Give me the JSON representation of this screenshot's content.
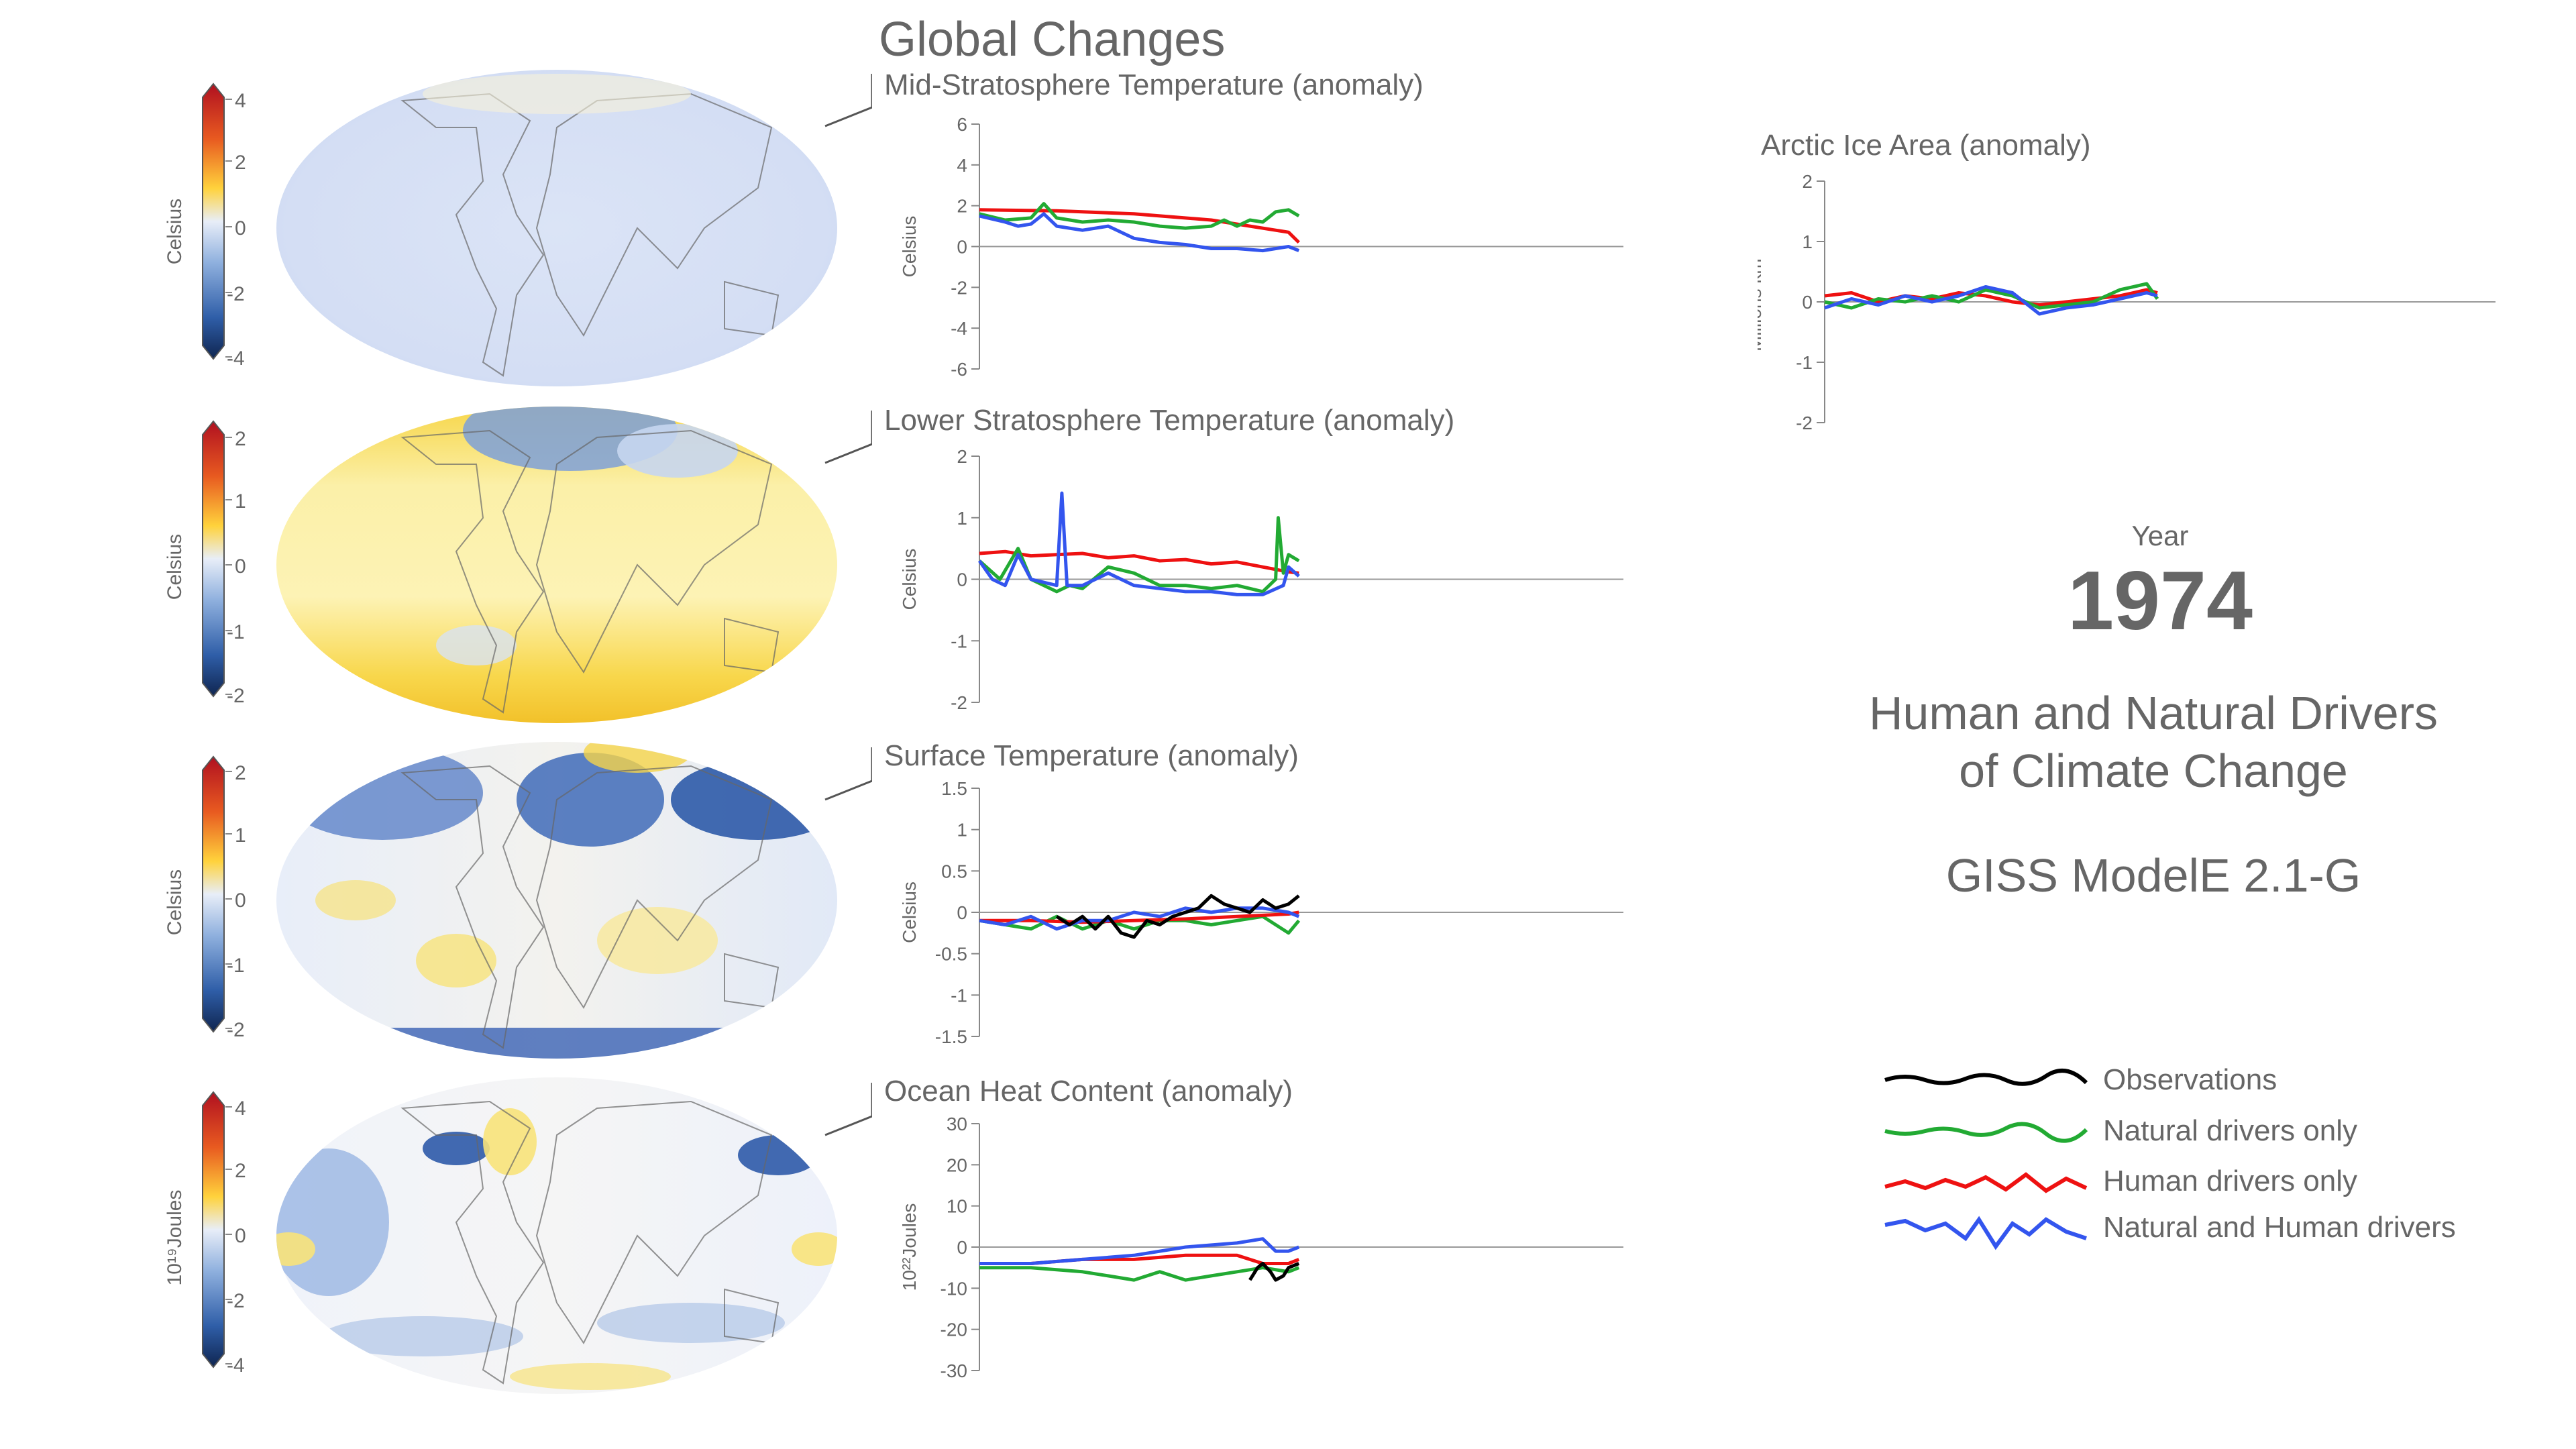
{
  "header": {
    "title": "Global Changes"
  },
  "year": {
    "label": "Year",
    "value": "1974"
  },
  "subtitle": {
    "line1": "Human and Natural Drivers",
    "line2": "of Climate Change",
    "model": "GISS ModelE 2.1-G"
  },
  "colors": {
    "observations": "#000000",
    "natural": "#22aa33",
    "human": "#ee1111",
    "both": "#3355ee",
    "axis": "#888888",
    "text": "#666666"
  },
  "legend": [
    {
      "key": "observations",
      "label": "Observations"
    },
    {
      "key": "natural",
      "label": "Natural drivers only"
    },
    {
      "key": "human",
      "label": "Human drivers only"
    },
    {
      "key": "both",
      "label": "Natural and Human drivers"
    }
  ],
  "maps": [
    {
      "colorbar": {
        "label": "Celsius",
        "ticks": [
          "4",
          "2",
          "0",
          "-2",
          "-4"
        ]
      },
      "style": "mid"
    },
    {
      "colorbar": {
        "label": "Celsius",
        "ticks": [
          "2",
          "1",
          "0",
          "-1",
          "-2"
        ]
      },
      "style": "lower"
    },
    {
      "colorbar": {
        "label": "Celsius",
        "ticks": [
          "2",
          "1",
          "0",
          "-1",
          "-2"
        ]
      },
      "style": "surface"
    },
    {
      "colorbar": {
        "label": "10¹⁹Joules",
        "ticks": [
          "4",
          "2",
          "0",
          "-2",
          "-4"
        ]
      },
      "style": "ocean"
    }
  ],
  "chart_data": [
    {
      "type": "line",
      "title": "Mid-Stratosphere Temperature (anomaly)",
      "ylabel": "Celsius",
      "ylim": [
        -6,
        6
      ],
      "yticks": [
        "6",
        "4",
        "2",
        "0",
        "-2",
        "-4",
        "-6"
      ],
      "yticks_num": [
        6,
        4,
        2,
        0,
        -2,
        -4,
        -6
      ],
      "xlim": [
        1850,
        2100
      ],
      "series": [
        {
          "key": "human",
          "x": [
            1850,
            1880,
            1910,
            1940,
            1970,
            1974
          ],
          "y": [
            1.8,
            1.75,
            1.6,
            1.3,
            0.7,
            0.2
          ]
        },
        {
          "key": "natural",
          "x": [
            1850,
            1860,
            1870,
            1875,
            1880,
            1890,
            1900,
            1910,
            1920,
            1930,
            1940,
            1945,
            1950,
            1955,
            1960,
            1965,
            1970,
            1974
          ],
          "y": [
            1.6,
            1.3,
            1.4,
            2.1,
            1.4,
            1.2,
            1.3,
            1.2,
            1.0,
            0.9,
            1.0,
            1.3,
            1.0,
            1.3,
            1.2,
            1.7,
            1.8,
            1.5
          ]
        },
        {
          "key": "both",
          "x": [
            1850,
            1860,
            1865,
            1870,
            1875,
            1880,
            1890,
            1900,
            1910,
            1920,
            1930,
            1940,
            1950,
            1960,
            1970,
            1974
          ],
          "y": [
            1.5,
            1.2,
            1.0,
            1.1,
            1.6,
            1.0,
            0.8,
            1.0,
            0.4,
            0.2,
            0.1,
            -0.1,
            -0.1,
            -0.2,
            0.0,
            -0.2
          ]
        }
      ]
    },
    {
      "type": "line",
      "title": "Lower Stratosphere Temperature (anomaly)",
      "ylabel": "Celsius",
      "ylim": [
        -2,
        2
      ],
      "yticks": [
        "2",
        "1",
        "0",
        "-1",
        "-2"
      ],
      "yticks_num": [
        2,
        1,
        0,
        -1,
        -2
      ],
      "xlim": [
        1850,
        2100
      ],
      "series": [
        {
          "key": "human",
          "x": [
            1850,
            1860,
            1870,
            1880,
            1890,
            1900,
            1910,
            1920,
            1930,
            1940,
            1950,
            1960,
            1970,
            1974
          ],
          "y": [
            0.42,
            0.45,
            0.38,
            0.4,
            0.42,
            0.35,
            0.38,
            0.3,
            0.32,
            0.25,
            0.28,
            0.2,
            0.12,
            0.1
          ]
        },
        {
          "key": "natural",
          "x": [
            1850,
            1858,
            1865,
            1870,
            1880,
            1885,
            1890,
            1900,
            1910,
            1920,
            1930,
            1940,
            1950,
            1960,
            1965,
            1966,
            1968,
            1970,
            1974
          ],
          "y": [
            0.3,
            0.0,
            0.5,
            0.0,
            -0.2,
            -0.1,
            -0.15,
            0.2,
            0.1,
            -0.1,
            -0.1,
            -0.15,
            -0.1,
            -0.2,
            0.0,
            1.0,
            0.1,
            0.4,
            0.3
          ]
        },
        {
          "key": "both",
          "x": [
            1850,
            1855,
            1860,
            1865,
            1870,
            1880,
            1882,
            1884,
            1890,
            1900,
            1910,
            1920,
            1930,
            1940,
            1950,
            1960,
            1968,
            1970,
            1974
          ],
          "y": [
            0.3,
            0.0,
            -0.1,
            0.4,
            0.0,
            -0.1,
            1.4,
            -0.1,
            -0.1,
            0.1,
            -0.1,
            -0.15,
            -0.2,
            -0.2,
            -0.25,
            -0.25,
            -0.1,
            0.2,
            0.05
          ]
        }
      ]
    },
    {
      "type": "line",
      "title": "Surface Temperature (anomaly)",
      "ylabel": "Celsius",
      "ylim": [
        -1.5,
        1.5
      ],
      "yticks": [
        "1.5",
        "1",
        "0.5",
        "0",
        "-0.5",
        "-1",
        "-1.5"
      ],
      "yticks_num": [
        1.5,
        1,
        0.5,
        0,
        -0.5,
        -1,
        -1.5
      ],
      "xlim": [
        1850,
        2100
      ],
      "series": [
        {
          "key": "natural",
          "x": [
            1850,
            1860,
            1870,
            1880,
            1890,
            1900,
            1910,
            1920,
            1930,
            1940,
            1950,
            1960,
            1970,
            1974
          ],
          "y": [
            -0.1,
            -0.15,
            -0.2,
            -0.05,
            -0.2,
            -0.1,
            -0.2,
            -0.1,
            -0.1,
            -0.15,
            -0.1,
            -0.05,
            -0.25,
            -0.1
          ]
        },
        {
          "key": "human",
          "x": [
            1850,
            1870,
            1890,
            1910,
            1930,
            1950,
            1970,
            1974
          ],
          "y": [
            -0.1,
            -0.1,
            -0.12,
            -0.1,
            -0.08,
            -0.05,
            -0.02,
            0.0
          ]
        },
        {
          "key": "both",
          "x": [
            1850,
            1860,
            1870,
            1880,
            1890,
            1900,
            1910,
            1920,
            1930,
            1940,
            1950,
            1960,
            1970,
            1974
          ],
          "y": [
            -0.1,
            -0.15,
            -0.05,
            -0.2,
            -0.1,
            -0.1,
            0.0,
            -0.05,
            0.05,
            0.0,
            0.05,
            0.05,
            0.0,
            -0.05
          ]
        },
        {
          "key": "observations",
          "x": [
            1880,
            1885,
            1890,
            1895,
            1900,
            1905,
            1910,
            1915,
            1920,
            1925,
            1930,
            1935,
            1940,
            1945,
            1950,
            1955,
            1960,
            1965,
            1970,
            1974
          ],
          "y": [
            -0.05,
            -0.15,
            -0.05,
            -0.2,
            -0.05,
            -0.25,
            -0.3,
            -0.1,
            -0.15,
            -0.05,
            0.0,
            0.05,
            0.2,
            0.1,
            0.05,
            0.0,
            0.15,
            0.05,
            0.1,
            0.2
          ]
        }
      ]
    },
    {
      "type": "line",
      "title": "Ocean Heat Content (anomaly)",
      "ylabel": "10²²Joules",
      "ylim": [
        -30,
        30
      ],
      "yticks": [
        "30",
        "20",
        "10",
        "0",
        "-10",
        "-20",
        "-30"
      ],
      "yticks_num": [
        30,
        20,
        10,
        0,
        -10,
        -20,
        -30
      ],
      "xlim": [
        1850,
        2100
      ],
      "series": [
        {
          "key": "natural",
          "x": [
            1850,
            1870,
            1890,
            1900,
            1910,
            1920,
            1930,
            1940,
            1950,
            1960,
            1970,
            1974
          ],
          "y": [
            -5,
            -5,
            -6,
            -7,
            -8,
            -6,
            -8,
            -7,
            -6,
            -5,
            -6,
            -5
          ]
        },
        {
          "key": "human",
          "x": [
            1850,
            1870,
            1890,
            1910,
            1930,
            1950,
            1960,
            1970,
            1974
          ],
          "y": [
            -4,
            -4,
            -3,
            -3,
            -2,
            -2,
            -4,
            -4,
            -3
          ]
        },
        {
          "key": "both",
          "x": [
            1850,
            1870,
            1890,
            1910,
            1930,
            1950,
            1960,
            1965,
            1970,
            1974
          ],
          "y": [
            -4,
            -4,
            -3,
            -2,
            0,
            1,
            2,
            -1,
            -1,
            0
          ]
        },
        {
          "key": "observations",
          "x": [
            1955,
            1958,
            1960,
            1963,
            1965,
            1968,
            1970,
            1974
          ],
          "y": [
            -8,
            -5,
            -4,
            -6,
            -8,
            -7,
            -5,
            -4
          ]
        }
      ]
    },
    {
      "type": "line",
      "title": "Arctic Ice Area (anomaly)",
      "ylabel": "Millions km²",
      "ylim": [
        -2,
        2
      ],
      "yticks": [
        "2",
        "1",
        "0",
        "-1",
        "-2"
      ],
      "yticks_num": [
        2,
        1,
        0,
        -1,
        -2
      ],
      "xlim": [
        1850,
        2100
      ],
      "series": [
        {
          "key": "human",
          "x": [
            1850,
            1860,
            1870,
            1880,
            1890,
            1900,
            1910,
            1920,
            1930,
            1940,
            1950,
            1960,
            1970,
            1974
          ],
          "y": [
            0.1,
            0.15,
            0.0,
            0.1,
            0.05,
            0.15,
            0.1,
            0.0,
            -0.05,
            0.0,
            0.05,
            0.1,
            0.2,
            0.15
          ]
        },
        {
          "key": "natural",
          "x": [
            1850,
            1860,
            1870,
            1880,
            1890,
            1900,
            1910,
            1920,
            1930,
            1940,
            1950,
            1960,
            1970,
            1974
          ],
          "y": [
            0.0,
            -0.1,
            0.05,
            0.0,
            0.1,
            0.0,
            0.2,
            0.1,
            -0.1,
            -0.05,
            0.0,
            0.2,
            0.3,
            0.05
          ]
        },
        {
          "key": "both",
          "x": [
            1850,
            1860,
            1870,
            1880,
            1890,
            1900,
            1910,
            1920,
            1930,
            1940,
            1950,
            1960,
            1970,
            1974
          ],
          "y": [
            -0.1,
            0.05,
            -0.05,
            0.1,
            0.0,
            0.1,
            0.25,
            0.15,
            -0.2,
            -0.1,
            -0.05,
            0.05,
            0.15,
            0.1
          ]
        }
      ]
    }
  ]
}
